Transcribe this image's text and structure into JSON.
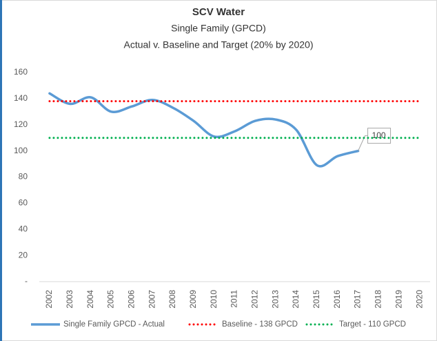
{
  "chart_data": {
    "type": "line",
    "title": "SCV Water",
    "subtitle": "Single Family (GPCD)",
    "subtitle2": "Actual v. Baseline and Target (20% by 2020)",
    "categories": [
      "2002",
      "2003",
      "2004",
      "2005",
      "2006",
      "2007",
      "2008",
      "2009",
      "2010",
      "2011",
      "2012",
      "2013",
      "2014",
      "2015",
      "2016",
      "2017",
      "2018",
      "2019",
      "2020"
    ],
    "series": [
      {
        "name": "Single Family GPCD - Actual",
        "color": "#5b9bd5",
        "style": "solid",
        "values": [
          144,
          136,
          141,
          130,
          134,
          139,
          133,
          123,
          111,
          115,
          123,
          124,
          116,
          89,
          96,
          100,
          null,
          null,
          null
        ],
        "value_labels": [
          null,
          null,
          null,
          null,
          null,
          null,
          null,
          null,
          null,
          null,
          null,
          null,
          null,
          null,
          null,
          "100",
          null,
          null,
          null
        ]
      },
      {
        "name": "Baseline - 138 GPCD",
        "color": "#ff0000",
        "style": "dotted",
        "values": [
          138,
          138,
          138,
          138,
          138,
          138,
          138,
          138,
          138,
          138,
          138,
          138,
          138,
          138,
          138,
          138,
          138,
          138,
          138
        ]
      },
      {
        "name": "Target - 110 GPCD",
        "color": "#00b050",
        "style": "dotted",
        "values": [
          110,
          110,
          110,
          110,
          110,
          110,
          110,
          110,
          110,
          110,
          110,
          110,
          110,
          110,
          110,
          110,
          110,
          110,
          110
        ]
      }
    ],
    "ylim": [
      0,
      160
    ],
    "yticks": [
      {
        "value": 0,
        "label": "-"
      },
      20,
      40,
      60,
      80,
      100,
      120,
      140,
      160
    ],
    "grid": false,
    "smooth": true,
    "legend": "bottom"
  }
}
